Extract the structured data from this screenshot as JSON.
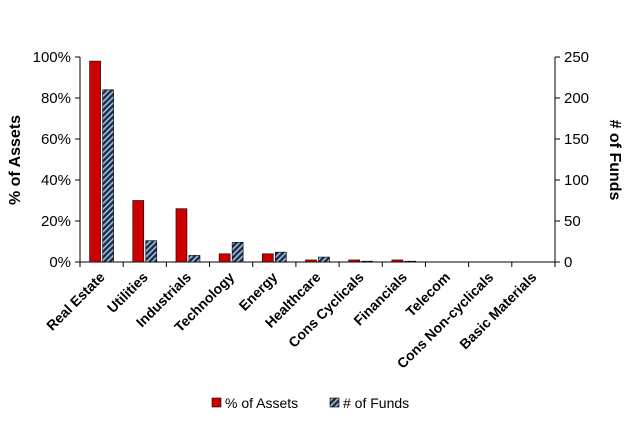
{
  "chart_data": {
    "type": "bar",
    "categories": [
      "Real Estate",
      "Utilities",
      "Industrials",
      "Technology",
      "Energy",
      "Healthcare",
      "Cons Cyclicals",
      "Financials",
      "Telecom",
      "Cons Non-cyclicals",
      "Basic Materials"
    ],
    "series": [
      {
        "name": "% of Assets",
        "axis": "left",
        "values": [
          98,
          30,
          26,
          4,
          4,
          1,
          1,
          1,
          0,
          0,
          0
        ],
        "color": "#cc0000"
      },
      {
        "name": "# of Funds",
        "axis": "right",
        "values": [
          210,
          26,
          8,
          24,
          12,
          6,
          1,
          1,
          0,
          0,
          0
        ],
        "color": "#1f2a44",
        "pattern": "diagonal-hatch-light-blue"
      }
    ],
    "ylabel": "% of Assets",
    "y2label": "# of Funds",
    "ylim": [
      0,
      100
    ],
    "y2lim": [
      0,
      250
    ],
    "yticks": [
      "0%",
      "20%",
      "40%",
      "60%",
      "80%",
      "100%"
    ],
    "y2ticks": [
      "0",
      "50",
      "100",
      "150",
      "200",
      "250"
    ],
    "yticks_values": [
      0,
      20,
      40,
      60,
      80,
      100
    ],
    "y2ticks_values": [
      0,
      50,
      100,
      150,
      200,
      250
    ],
    "grid": false,
    "legend": "bottom-center"
  }
}
